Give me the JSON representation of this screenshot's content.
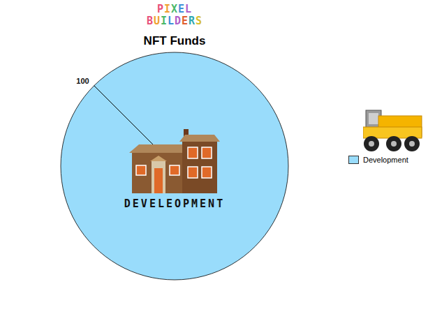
{
  "chart_data": {
    "type": "pie",
    "title": "NFT Funds",
    "annotations": [
      "PIXEL",
      "BUILDERS",
      "DEVELEOPMENT"
    ],
    "categories": [
      "Development"
    ],
    "values": [
      100
    ],
    "colors": [
      "#99dcfb"
    ],
    "data_labels": true,
    "legend": "right"
  }
}
